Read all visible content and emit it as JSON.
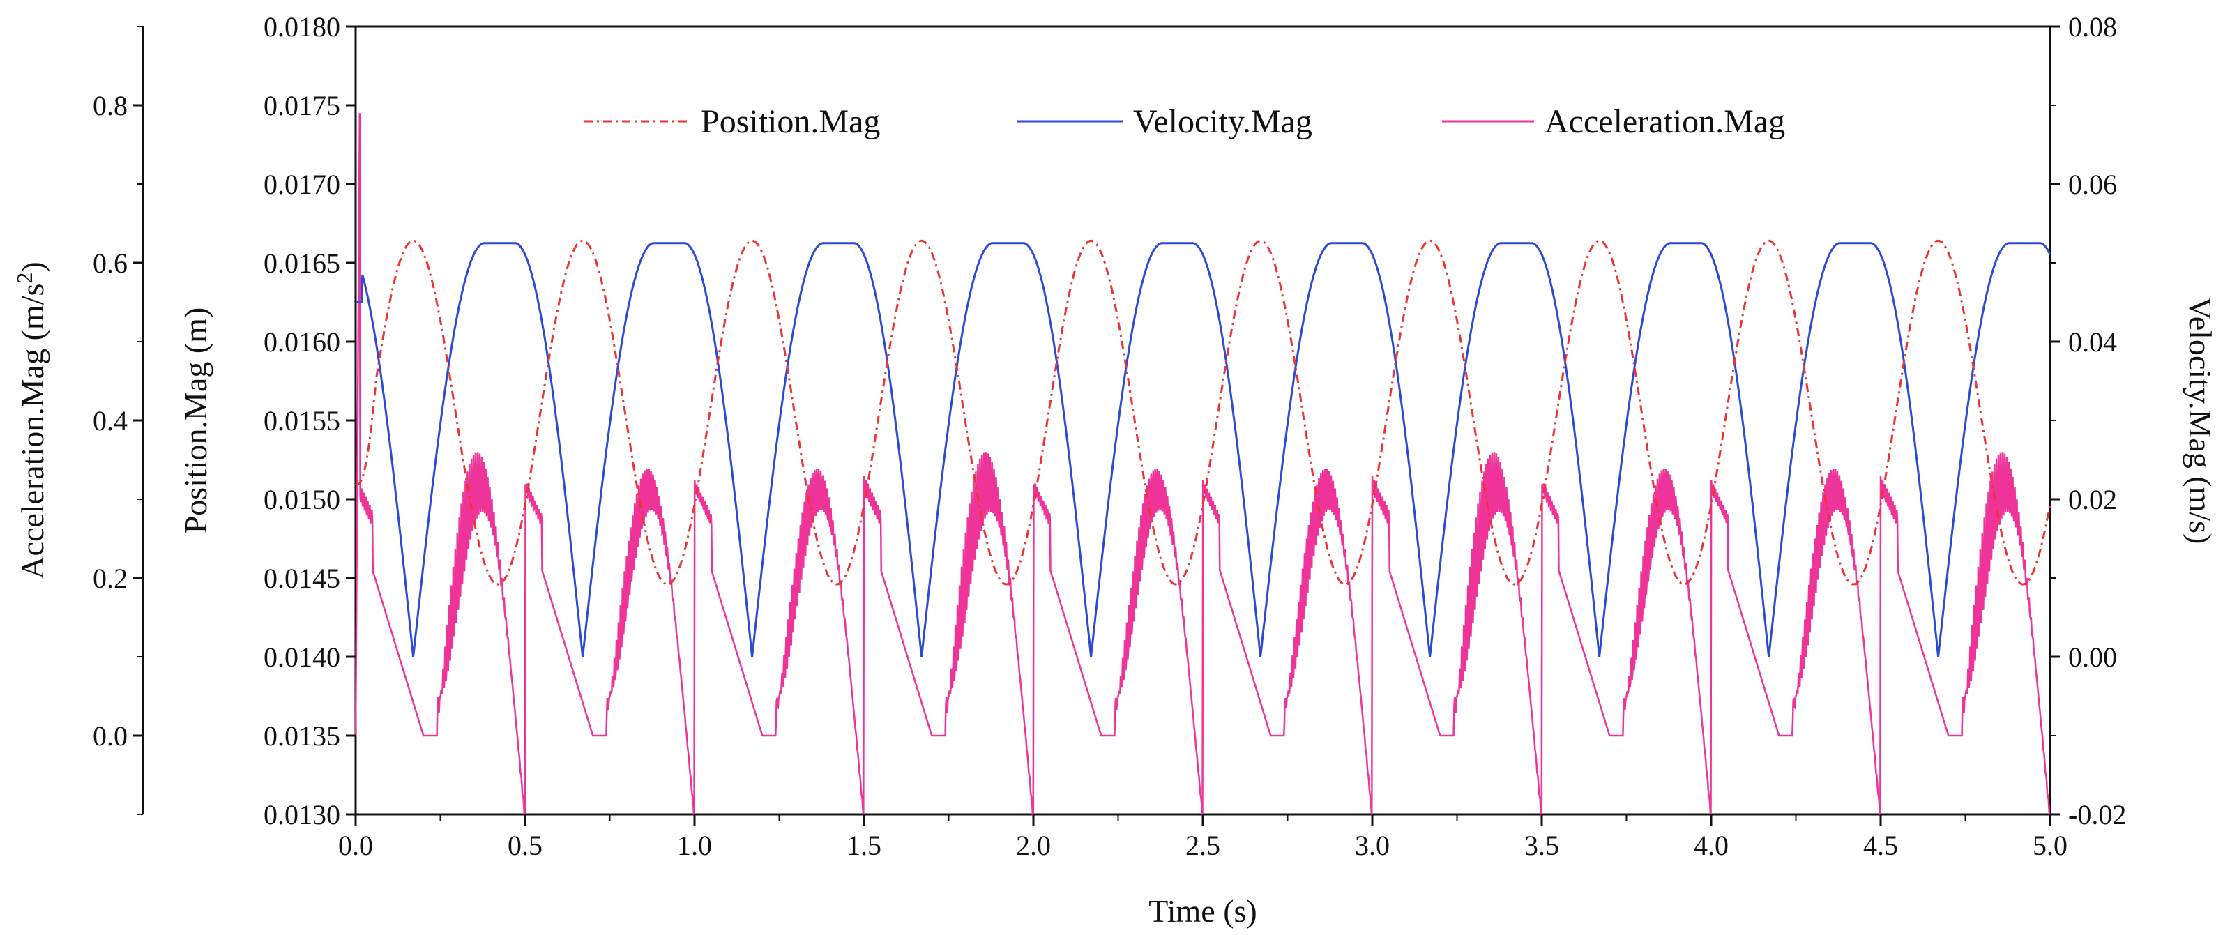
{
  "chart_data": {
    "type": "line",
    "title": "",
    "xlabel": "Time (s)",
    "xlim": [
      0,
      5
    ],
    "x_ticks": [
      0,
      0.5,
      1,
      1.5,
      2,
      2.5,
      3,
      3.5,
      4,
      4.5,
      5
    ],
    "x_tick_labels": [
      "0.0",
      "0.5",
      "1.0",
      "1.5",
      "2.0",
      "2.5",
      "3.0",
      "3.5",
      "4.0",
      "4.5",
      "5.0"
    ],
    "axes": {
      "position": {
        "label": "Position.Mag (m)",
        "lim": [
          0.013,
          0.018
        ],
        "ticks": [
          0.013,
          0.0135,
          0.014,
          0.0145,
          0.015,
          0.0155,
          0.016,
          0.0165,
          0.017,
          0.0175,
          0.018
        ],
        "tick_labels": [
          "0.0130",
          "0.0135",
          "0.0140",
          "0.0145",
          "0.0150",
          "0.0155",
          "0.0160",
          "0.0165",
          "0.0170",
          "0.0175",
          "0.0180"
        ]
      },
      "acceleration": {
        "label_prefix": "Acceleration.Mag (m/s",
        "label_sup": "2",
        "label_suffix": ")",
        "lim": [
          -0.1,
          0.9
        ],
        "ticks": [
          0,
          0.2,
          0.4,
          0.6,
          0.8
        ],
        "tick_labels": [
          "0.0",
          "0.2",
          "0.4",
          "0.6",
          "0.8"
        ]
      },
      "velocity": {
        "label": "Velocity.Mag (m/s)",
        "lim": [
          -0.02,
          0.08
        ],
        "ticks": [
          -0.02,
          0,
          0.02,
          0.04,
          0.06,
          0.08
        ],
        "tick_labels": [
          "-0.02",
          "0.00",
          "0.02",
          "0.04",
          "0.06",
          "0.08"
        ]
      }
    },
    "series": [
      {
        "name": "Position.Mag",
        "axis": "position",
        "color": "#ee3333",
        "style": "dash-dot",
        "model": {
          "period_s": 0.5,
          "mean": 0.01555,
          "amplitude": 0.00109,
          "peak_time_s": 0.17,
          "start_value": 0.0151
        }
      },
      {
        "name": "Velocity.Mag",
        "axis": "velocity",
        "color": "#2b4ad6",
        "style": "solid",
        "model": {
          "period_s": 0.5,
          "min": 0.0,
          "max": 0.0525,
          "min_time_s": 0.17,
          "plateau_start_s": 0.38,
          "plateau_end_s": 0.47,
          "start_value": 0.045
        }
      },
      {
        "name": "Acceleration.Mag",
        "axis": "acceleration",
        "color": "#ee3399",
        "style": "solid",
        "model": {
          "period_s": 0.5,
          "zero_start_s": 0.2,
          "zero_end_s": 0.24,
          "rise_end_s": 0.4,
          "envelope_peak": 0.36,
          "oscillation_floor": 0.05,
          "initial_spike": 0.79
        }
      }
    ],
    "legend_position": "top"
  }
}
